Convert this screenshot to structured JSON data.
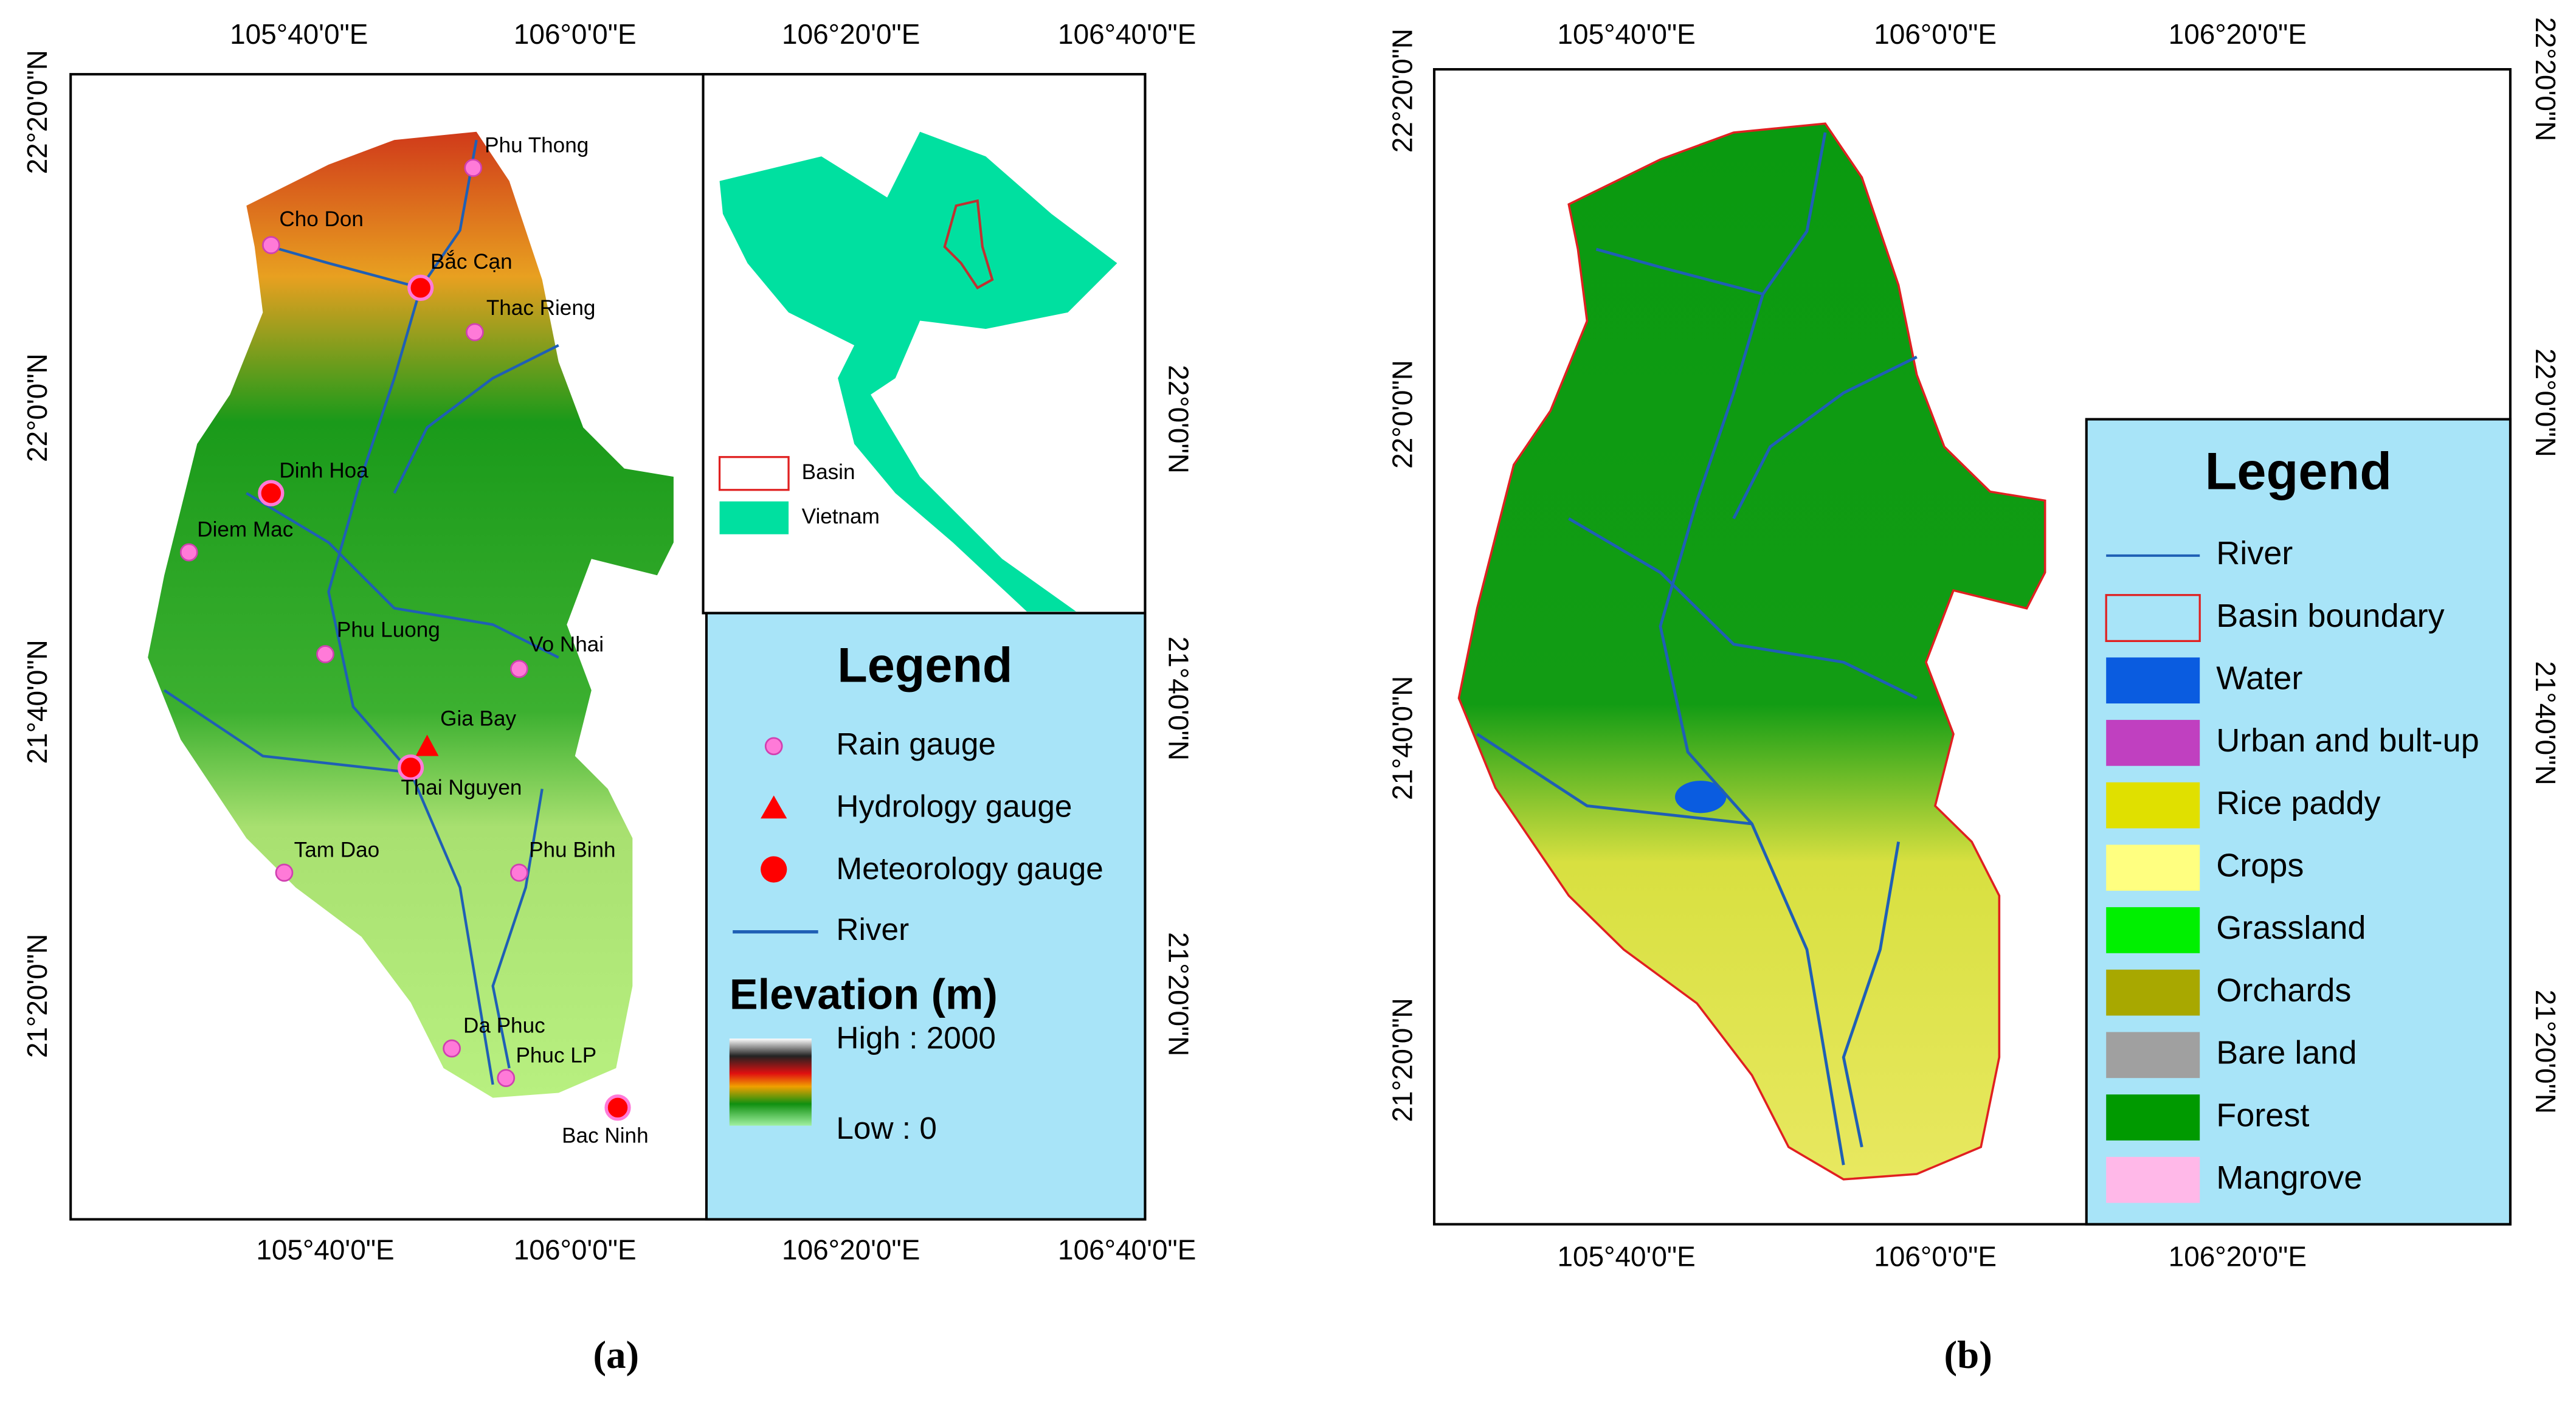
{
  "panel_a": {
    "caption": "(a)",
    "top_labels": [
      "105°40'0\"E",
      "106°0'0\"E",
      "106°20'0\"E",
      "106°40'0\"E"
    ],
    "bottom_labels": [
      "105°40'0\"E",
      "106°0'0\"E",
      "106°20'0\"E",
      "106°40'0\"E"
    ],
    "left_labels": [
      "22°20'0\"N",
      "22°0'0\"N",
      "21°40'0\"N",
      "21°20'0\"N"
    ],
    "right_labels": [
      "22°0'0\"N",
      "21°40'0\"N",
      "21°20'0\"N"
    ],
    "gauges": [
      {
        "name": "Phu Thong",
        "kind": "rain"
      },
      {
        "name": "Cho Don",
        "kind": "rain"
      },
      {
        "name": "Bắc Cạn",
        "kind": "meteorology"
      },
      {
        "name": "Thac Rieng",
        "kind": "rain"
      },
      {
        "name": "Dinh Hoa",
        "kind": "meteorology"
      },
      {
        "name": "Diem Mac",
        "kind": "rain"
      },
      {
        "name": "Phu Luong",
        "kind": "rain"
      },
      {
        "name": "Vo Nhai",
        "kind": "rain"
      },
      {
        "name": "Gia Bay",
        "kind": "hydrology"
      },
      {
        "name": "Thai Nguyen",
        "kind": "meteorology"
      },
      {
        "name": "Tam Dao",
        "kind": "rain"
      },
      {
        "name": "Phu Binh",
        "kind": "rain"
      },
      {
        "name": "Da Phuc",
        "kind": "rain"
      },
      {
        "name": "Phuc LP",
        "kind": "rain"
      },
      {
        "name": "Bac Ninh",
        "kind": "meteorology"
      }
    ],
    "inset_legend": [
      "Basin",
      "Vietnam"
    ],
    "legend": {
      "title": "Legend",
      "items": [
        "Rain gauge",
        "Hydrology gauge",
        "Meteorology gauge",
        "River"
      ],
      "elevation_title": "Elevation (m)",
      "high": "High : 2000",
      "low": "Low : 0"
    }
  },
  "panel_b": {
    "caption": "(b)",
    "top_labels": [
      "105°40'0\"E",
      "106°0'0\"E",
      "106°20'0\"E"
    ],
    "bottom_labels": [
      "105°40'0\"E",
      "106°0'0\"E",
      "106°20'0\"E"
    ],
    "left_labels": [
      "22°20'0\"N",
      "22°0'0\"N",
      "21°40'0\"N",
      "21°20'0\"N"
    ],
    "right_labels": [
      "22°20'0\"N",
      "22°0'0\"N",
      "21°40'0\"N",
      "21°20'0\"N"
    ],
    "legend": {
      "title": "Legend",
      "items": [
        {
          "label": "River",
          "color": "#1f5fb5"
        },
        {
          "label": "Basin boundary",
          "color": "#e02020"
        },
        {
          "label": "Water",
          "color": "#0a5ce0"
        },
        {
          "label": "Urban and bult-up",
          "color": "#c040c0"
        },
        {
          "label": "Rice paddy",
          "color": "#e0e000"
        },
        {
          "label": "Crops",
          "color": "#ffff80"
        },
        {
          "label": "Grassland",
          "color": "#00f000"
        },
        {
          "label": "Orchards",
          "color": "#a8a800"
        },
        {
          "label": "Bare land",
          "color": "#a0a0a0"
        },
        {
          "label": "Forest",
          "color": "#009a00"
        },
        {
          "label": "Mangrove",
          "color": "#ffb8e8"
        }
      ]
    }
  }
}
